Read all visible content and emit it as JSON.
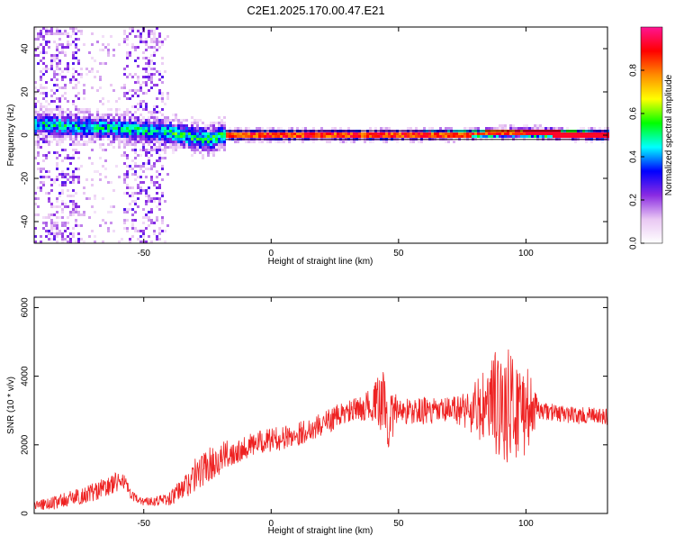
{
  "title": "C2E1.2025.170.00.47.E21",
  "chart_data": [
    {
      "type": "heatmap",
      "xlabel": "Height of straight line (km)",
      "ylabel": "Frequency (Hz)",
      "xlim": [
        -93,
        132
      ],
      "ylim": [
        -50,
        50
      ],
      "xticks": [
        -50,
        0,
        50,
        100
      ],
      "xtick_labels": [
        "-50",
        "0",
        "50",
        "100"
      ],
      "yticks": [
        -40,
        -20,
        0,
        20,
        40
      ],
      "ytick_labels": [
        "-40",
        "-20",
        "0",
        "20",
        "40"
      ],
      "colorbar": {
        "label": "Normalized spectral amplitude",
        "range": [
          0,
          1
        ],
        "ticks": [
          0.0,
          0.2,
          0.4,
          0.6,
          0.8
        ],
        "tick_labels": [
          "0.0",
          "0.2",
          "0.4",
          "0.6",
          "0.8"
        ],
        "palette": [
          "#ffffff",
          "#e9c7f3",
          "#8a2be2",
          "#0000ff",
          "#00ffff",
          "#00ff00",
          "#ffff00",
          "#ff8c00",
          "#ff0000",
          "#ff1493"
        ]
      },
      "ridge": {
        "x": [
          -93,
          -80,
          -60,
          -40,
          -25,
          -18,
          0,
          50,
          100,
          132
        ],
        "center_freq": [
          5,
          4,
          3,
          1,
          -2,
          0,
          0,
          0,
          1,
          0
        ]
      },
      "reference_lines": [
        2,
        -2
      ],
      "reference_line_color": "#000000",
      "grid": false
    },
    {
      "type": "line",
      "xlabel": "Height of straight line (km)",
      "ylabel": "SNR (10 * v/v)",
      "xlim": [
        -93,
        132
      ],
      "ylim": [
        0,
        6300
      ],
      "xticks": [
        -50,
        0,
        50,
        100
      ],
      "xtick_labels": [
        "-50",
        "0",
        "50",
        "100"
      ],
      "yticks": [
        0,
        2000,
        4000,
        6000
      ],
      "ytick_labels": [
        "0",
        "2000",
        "4000",
        "6000"
      ],
      "series_color": "#ee2222",
      "series": [
        {
          "x": [
            -93,
            -85,
            -75,
            -65,
            -58,
            -55,
            -50,
            -45,
            -40,
            -35,
            -30,
            -25,
            -20,
            -15,
            -10,
            -5,
            0,
            5,
            10,
            15,
            20,
            25,
            30,
            35,
            40,
            44,
            46,
            50,
            55,
            60,
            65,
            70,
            75,
            80,
            85,
            88,
            92,
            95,
            100,
            105,
            110,
            115,
            120,
            125,
            132
          ],
          "y": [
            230,
            320,
            500,
            750,
            1000,
            500,
            350,
            380,
            420,
            700,
            1100,
            1400,
            1600,
            1800,
            1950,
            2050,
            2150,
            2200,
            2300,
            2450,
            2600,
            2800,
            2950,
            3050,
            3200,
            3300,
            2700,
            3050,
            2950,
            3000,
            2950,
            3000,
            3050,
            3000,
            3100,
            3200,
            3150,
            3100,
            3050,
            3000,
            2950,
            2900,
            2850,
            2850,
            2800
          ],
          "noise": [
            150,
            200,
            250,
            300,
            300,
            150,
            120,
            150,
            200,
            350,
            500,
            500,
            450,
            400,
            350,
            350,
            350,
            350,
            350,
            350,
            350,
            350,
            350,
            350,
            500,
            1000,
            900,
            400,
            400,
            400,
            400,
            400,
            500,
            900,
            1200,
            1600,
            1700,
            1600,
            1400,
            250,
            250,
            250,
            250,
            250,
            250
          ]
        }
      ],
      "grid": false
    }
  ]
}
